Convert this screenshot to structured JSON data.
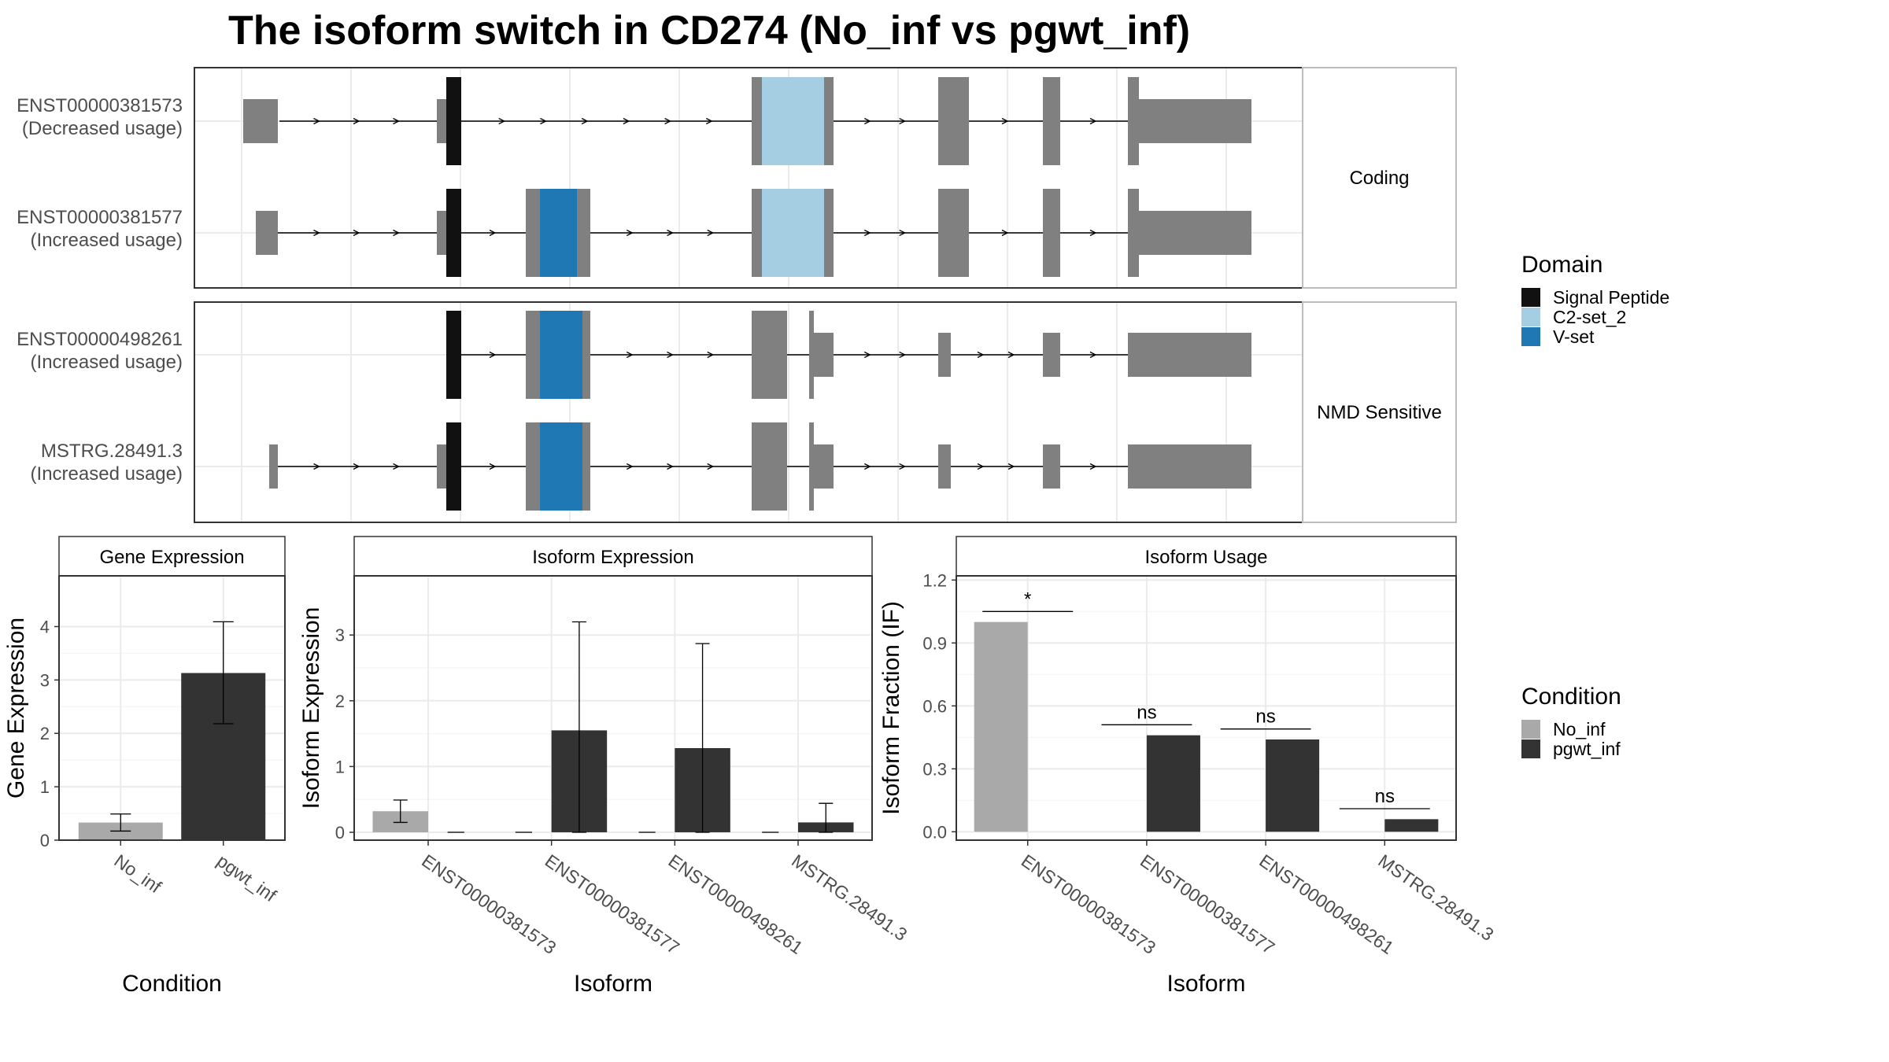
{
  "title": "The isoform switch in CD274 (No_inf vs pgwt_inf)",
  "colors": {
    "signal_peptide": "#111111",
    "c2_set_2": "#A6CEE3",
    "v_set": "#1F78B4",
    "exon": "#808080",
    "no_inf": "#A9A9A9",
    "pgwt_inf": "#333333"
  },
  "structure": {
    "facets": [
      "Coding",
      "NMD Sensitive"
    ],
    "isoforms": [
      {
        "id": "ENST00000381573",
        "usage": "(Decreased usage)",
        "facet": "Coding"
      },
      {
        "id": "ENST00000381577",
        "usage": "(Increased usage)",
        "facet": "Coding"
      },
      {
        "id": "ENST00000498261",
        "usage": "(Increased usage)",
        "facet": "NMD Sensitive"
      },
      {
        "id": "MSTRG.28491.3",
        "usage": "(Increased usage)",
        "facet": "NMD Sensitive"
      }
    ]
  },
  "legend_domain": {
    "title": "Domain",
    "items": [
      {
        "label": "Signal Peptide",
        "color": "#111111"
      },
      {
        "label": "C2-set_2",
        "color": "#A6CEE3"
      },
      {
        "label": "V-set",
        "color": "#1F78B4"
      }
    ]
  },
  "legend_condition": {
    "title": "Condition",
    "items": [
      {
        "label": "No_inf",
        "color": "#A9A9A9"
      },
      {
        "label": "pgwt_inf",
        "color": "#333333"
      }
    ]
  },
  "chart_data": [
    {
      "type": "bar",
      "panel": "Gene Expression",
      "xlabel": "Condition",
      "ylabel": "Gene Expression",
      "categories": [
        "No_inf",
        "pgwt_inf"
      ],
      "values": [
        0.33,
        3.13
      ],
      "err_low": [
        0.17,
        2.18
      ],
      "err_high": [
        0.49,
        4.09
      ],
      "ylim": [
        0,
        4.95
      ],
      "yticks": [
        0,
        1,
        2,
        3,
        4
      ]
    },
    {
      "type": "bar",
      "panel": "Isoform Expression",
      "xlabel": "Isoform",
      "ylabel": "Isoform Expression",
      "categories": [
        "ENST00000381573",
        "ENST00000381577",
        "ENST00000498261",
        "MSTRG.28491.3"
      ],
      "series": [
        {
          "name": "No_inf",
          "values": [
            0.32,
            0.0,
            0.0,
            0.0
          ],
          "err_low": [
            0.15,
            0.0,
            0.0,
            0.0
          ],
          "err_high": [
            0.49,
            0.0,
            0.0,
            0.0
          ]
        },
        {
          "name": "pgwt_inf",
          "values": [
            0.0,
            1.55,
            1.28,
            0.15
          ],
          "err_low": [
            0.0,
            0.0,
            0.0,
            0.0
          ],
          "err_high": [
            0.0,
            3.2,
            2.87,
            0.44
          ]
        }
      ],
      "ylim": [
        -0.12,
        3.9
      ],
      "yticks": [
        0,
        1,
        2,
        3
      ]
    },
    {
      "type": "bar",
      "panel": "Isoform Usage",
      "xlabel": "Isoform",
      "ylabel": "Isoform Fraction (IF)",
      "categories": [
        "ENST00000381573",
        "ENST00000381577",
        "ENST00000498261",
        "MSTRG.28491.3"
      ],
      "series": [
        {
          "name": "No_inf",
          "values": [
            1.0,
            0.0,
            0.0,
            0.0
          ]
        },
        {
          "name": "pgwt_inf",
          "values": [
            0.0,
            0.46,
            0.44,
            0.06
          ]
        }
      ],
      "significance": [
        {
          "label": "*",
          "y": 1.05
        },
        {
          "label": "ns",
          "y": 0.51
        },
        {
          "label": "ns",
          "y": 0.49
        },
        {
          "label": "ns",
          "y": 0.11
        }
      ],
      "ylim": [
        -0.04,
        1.22
      ],
      "yticks": [
        "0.0",
        "0.3",
        "0.6",
        "0.9",
        "1.2"
      ]
    }
  ]
}
